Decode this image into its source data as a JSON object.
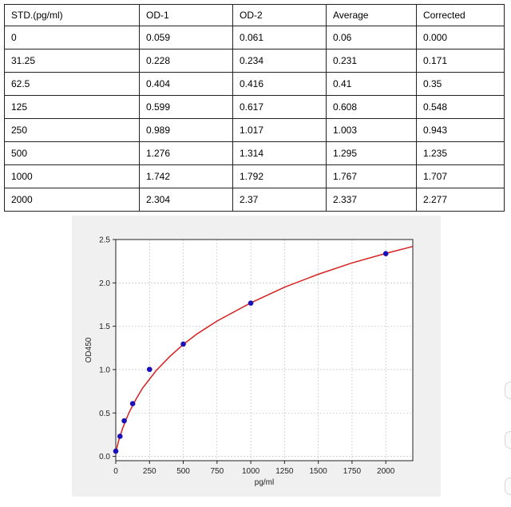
{
  "table": {
    "headers": [
      "STD.(pg/ml)",
      "OD-1",
      "OD-2",
      "Average",
      "Corrected"
    ],
    "rows": [
      [
        "0",
        "0.059",
        "0.061",
        "0.06",
        "0.000"
      ],
      [
        "31.25",
        "0.228",
        "0.234",
        "0.231",
        "0.171"
      ],
      [
        "62.5",
        "0.404",
        "0.416",
        "0.41",
        "0.35"
      ],
      [
        "125",
        "0.599",
        "0.617",
        "0.608",
        "0.548"
      ],
      [
        "250",
        "0.989",
        "1.017",
        "1.003",
        "0.943"
      ],
      [
        "500",
        "1.276",
        "1.314",
        "1.295",
        "1.235"
      ],
      [
        "1000",
        "1.742",
        "1.792",
        "1.767",
        "1.707"
      ],
      [
        "2000",
        "2.304",
        "2.37",
        "2.337",
        "2.277"
      ]
    ]
  },
  "chart_data": {
    "type": "scatter",
    "title": "",
    "xlabel": "pg/ml",
    "ylabel": "OD450",
    "xlim": [
      0,
      2200
    ],
    "ylim": [
      -0.05,
      2.5
    ],
    "xticks": [
      0,
      250,
      500,
      750,
      1000,
      1250,
      1500,
      1750,
      2000
    ],
    "yticks": [
      0.0,
      0.5,
      1.0,
      1.5,
      2.0,
      2.5
    ],
    "grid": true,
    "series": [
      {
        "type": "scatter",
        "x": [
          0,
          31.25,
          62.5,
          125,
          250,
          500,
          1000,
          2000
        ],
        "y": [
          0.06,
          0.231,
          0.41,
          0.608,
          1.003,
          1.295,
          1.767,
          2.337
        ],
        "color": "#1a0fb8"
      },
      {
        "type": "line",
        "x": [
          0,
          10,
          25,
          50,
          75,
          100,
          150,
          200,
          300,
          400,
          500,
          600,
          750,
          1000,
          1250,
          1500,
          1750,
          2000,
          2200
        ],
        "y": [
          0.04,
          0.11,
          0.2,
          0.32,
          0.42,
          0.51,
          0.66,
          0.79,
          0.99,
          1.15,
          1.29,
          1.41,
          1.56,
          1.77,
          1.95,
          2.1,
          2.23,
          2.34,
          2.42
        ],
        "color": "#d62020"
      }
    ]
  }
}
